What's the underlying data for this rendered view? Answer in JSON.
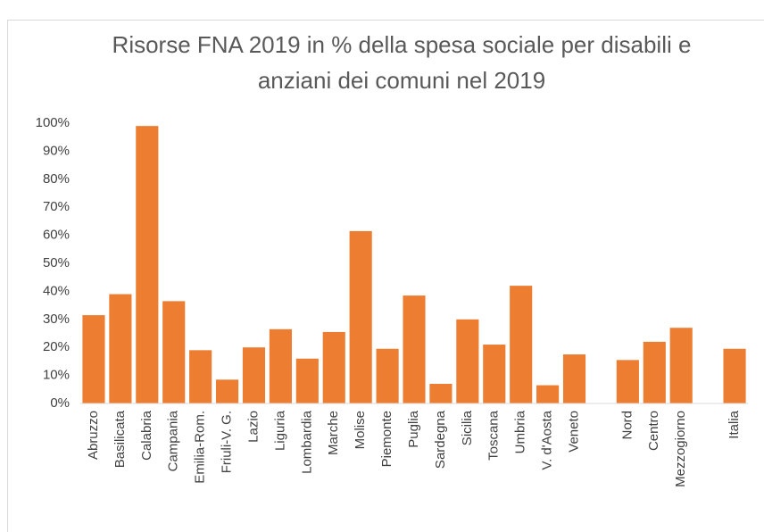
{
  "chart_data": {
    "type": "bar",
    "title": "Risorse FNA 2019 in % della spesa sociale per disabili e anziani dei comuni nel 2019",
    "categories": [
      "Abruzzo",
      "Basilicata",
      "Calabria",
      "Campania",
      "Emilia-Rom.",
      "Friuli-V. G.",
      "Lazio",
      "Liguria",
      "Lombardia",
      "Marche",
      "Molise",
      "Piemonte",
      "Puglia",
      "Sardegna",
      "Sicilia",
      "Toscana",
      "Umbria",
      "V. d'Aosta",
      "Veneto",
      null,
      "Nord",
      "Centro",
      "Mezzogiorno",
      null,
      "Italia"
    ],
    "values": [
      31.5,
      39,
      99,
      36.5,
      19,
      8.5,
      20,
      26.5,
      16,
      25.5,
      61.5,
      19.5,
      38.5,
      7,
      30,
      21,
      42,
      6.5,
      17.5,
      null,
      15.5,
      22,
      27,
      null,
      19.5
    ],
    "color": "#ed7d31",
    "ylim": [
      0,
      100
    ],
    "yticks": [
      {
        "value": 0,
        "label": "0%"
      },
      {
        "value": 10,
        "label": "10%"
      },
      {
        "value": 20,
        "label": "20%"
      },
      {
        "value": 30,
        "label": "30%"
      },
      {
        "value": 40,
        "label": "40%"
      },
      {
        "value": 50,
        "label": "50%"
      },
      {
        "value": 60,
        "label": "60%"
      },
      {
        "value": 70,
        "label": "70%"
      },
      {
        "value": 80,
        "label": "80%"
      },
      {
        "value": 90,
        "label": "90%"
      },
      {
        "value": 100,
        "label": "100%"
      }
    ],
    "grid": false
  }
}
